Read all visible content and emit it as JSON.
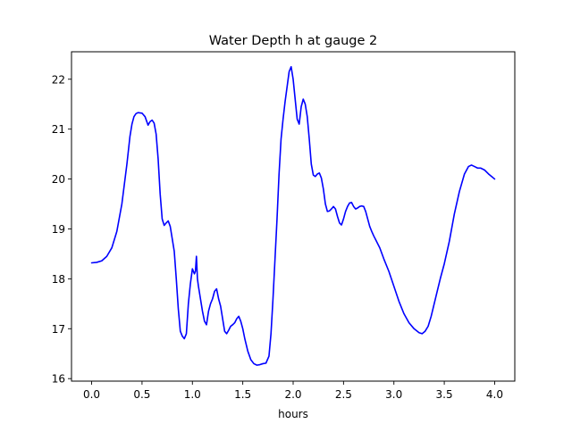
{
  "chart_data": {
    "type": "line",
    "title": "Water Depth h at gauge 2",
    "xlabel": "hours",
    "ylabel": "",
    "xlim": [
      -0.2,
      4.2
    ],
    "ylim": [
      15.95,
      22.55
    ],
    "xticks": [
      0.0,
      0.5,
      1.0,
      1.5,
      2.0,
      2.5,
      3.0,
      3.5,
      4.0
    ],
    "xtick_labels": [
      "0.0",
      "0.5",
      "1.0",
      "1.5",
      "2.0",
      "2.5",
      "3.0",
      "3.5",
      "4.0"
    ],
    "yticks": [
      16,
      17,
      18,
      19,
      20,
      21,
      22
    ],
    "ytick_labels": [
      "16",
      "17",
      "18",
      "19",
      "20",
      "21",
      "22"
    ],
    "grid": false,
    "line_color": "#0000ff",
    "series": [
      {
        "x": [
          0.0,
          0.05,
          0.1,
          0.15,
          0.2,
          0.25,
          0.3,
          0.35,
          0.38,
          0.4,
          0.42,
          0.44,
          0.46,
          0.5,
          0.53,
          0.56,
          0.58,
          0.6,
          0.62,
          0.64,
          0.66,
          0.68,
          0.7,
          0.72,
          0.74,
          0.76,
          0.78,
          0.8,
          0.82,
          0.84,
          0.86,
          0.88,
          0.9,
          0.92,
          0.94,
          0.96,
          0.98,
          1.0,
          1.02,
          1.03,
          1.04,
          1.05,
          1.06,
          1.08,
          1.1,
          1.12,
          1.14,
          1.16,
          1.18,
          1.2,
          1.22,
          1.24,
          1.26,
          1.28,
          1.3,
          1.32,
          1.34,
          1.36,
          1.38,
          1.4,
          1.42,
          1.44,
          1.46,
          1.48,
          1.5,
          1.52,
          1.55,
          1.58,
          1.61,
          1.64,
          1.67,
          1.7,
          1.73,
          1.76,
          1.78,
          1.8,
          1.82,
          1.84,
          1.86,
          1.88,
          1.9,
          1.92,
          1.94,
          1.96,
          1.98,
          2.0,
          2.02,
          2.04,
          2.06,
          2.08,
          2.1,
          2.12,
          2.14,
          2.16,
          2.18,
          2.2,
          2.22,
          2.24,
          2.26,
          2.28,
          2.3,
          2.32,
          2.34,
          2.36,
          2.38,
          2.4,
          2.42,
          2.44,
          2.46,
          2.48,
          2.5,
          2.52,
          2.54,
          2.56,
          2.58,
          2.6,
          2.62,
          2.64,
          2.66,
          2.68,
          2.7,
          2.72,
          2.74,
          2.76,
          2.78,
          2.8,
          2.82,
          2.84,
          2.86,
          2.9,
          2.95,
          3.0,
          3.05,
          3.1,
          3.15,
          3.2,
          3.25,
          3.28,
          3.31,
          3.34,
          3.37,
          3.4,
          3.43,
          3.46,
          3.5,
          3.55,
          3.6,
          3.65,
          3.7,
          3.74,
          3.77,
          3.8,
          3.83,
          3.86,
          3.9,
          3.94,
          3.97,
          4.0
        ],
        "y": [
          18.32,
          18.33,
          18.36,
          18.45,
          18.62,
          18.95,
          19.5,
          20.3,
          20.85,
          21.1,
          21.25,
          21.31,
          21.33,
          21.32,
          21.25,
          21.08,
          21.15,
          21.18,
          21.12,
          20.9,
          20.4,
          19.7,
          19.2,
          19.07,
          19.12,
          19.16,
          19.05,
          18.8,
          18.55,
          18.0,
          17.4,
          16.95,
          16.85,
          16.8,
          16.9,
          17.5,
          17.9,
          18.2,
          18.1,
          18.15,
          18.45,
          18.0,
          17.85,
          17.6,
          17.35,
          17.15,
          17.08,
          17.35,
          17.5,
          17.6,
          17.75,
          17.8,
          17.6,
          17.45,
          17.2,
          16.95,
          16.9,
          16.97,
          17.05,
          17.08,
          17.12,
          17.2,
          17.25,
          17.15,
          17.0,
          16.8,
          16.55,
          16.38,
          16.3,
          16.27,
          16.28,
          16.3,
          16.31,
          16.45,
          16.9,
          17.6,
          18.4,
          19.2,
          20.1,
          20.8,
          21.2,
          21.55,
          21.85,
          22.15,
          22.25,
          22.0,
          21.6,
          21.2,
          21.1,
          21.45,
          21.6,
          21.5,
          21.25,
          20.8,
          20.3,
          20.08,
          20.05,
          20.1,
          20.12,
          20.02,
          19.8,
          19.5,
          19.35,
          19.36,
          19.4,
          19.45,
          19.4,
          19.25,
          19.12,
          19.08,
          19.2,
          19.35,
          19.45,
          19.52,
          19.53,
          19.45,
          19.4,
          19.42,
          19.45,
          19.46,
          19.45,
          19.35,
          19.2,
          19.05,
          18.95,
          18.86,
          18.78,
          18.7,
          18.62,
          18.4,
          18.15,
          17.85,
          17.55,
          17.3,
          17.12,
          17.0,
          16.92,
          16.9,
          16.95,
          17.05,
          17.25,
          17.5,
          17.75,
          18.0,
          18.3,
          18.75,
          19.3,
          19.75,
          20.1,
          20.25,
          20.28,
          20.25,
          20.22,
          20.22,
          20.18,
          20.1,
          20.05,
          20.0
        ]
      }
    ]
  }
}
